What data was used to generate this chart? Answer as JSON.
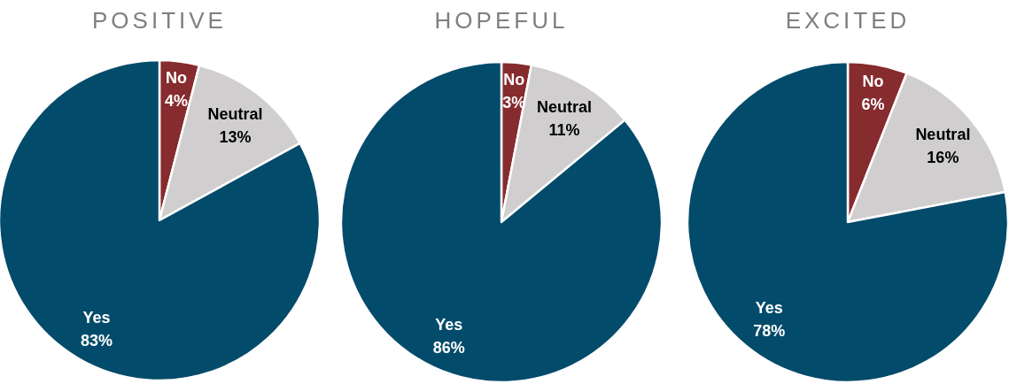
{
  "chart_data": [
    {
      "type": "pie",
      "title": "POSITIVE",
      "categories": [
        "No",
        "Neutral",
        "Yes"
      ],
      "values": [
        4,
        13,
        83
      ],
      "colors": [
        "#862b2e",
        "#d0cece",
        "#034b6a"
      ],
      "value_labels": [
        "4%",
        "13%",
        "83%"
      ]
    },
    {
      "type": "pie",
      "title": "HOPEFUL",
      "categories": [
        "No",
        "Neutral",
        "Yes"
      ],
      "values": [
        3,
        11,
        86
      ],
      "colors": [
        "#862b2e",
        "#d0cece",
        "#034b6a"
      ],
      "value_labels": [
        "3%",
        "11%",
        "86%"
      ]
    },
    {
      "type": "pie",
      "title": "EXCITED",
      "categories": [
        "No",
        "Neutral",
        "Yes"
      ],
      "values": [
        6,
        16,
        78
      ],
      "colors": [
        "#862b2e",
        "#d0cece",
        "#034b6a"
      ],
      "value_labels": [
        "6%",
        "16%",
        "78%"
      ]
    }
  ]
}
